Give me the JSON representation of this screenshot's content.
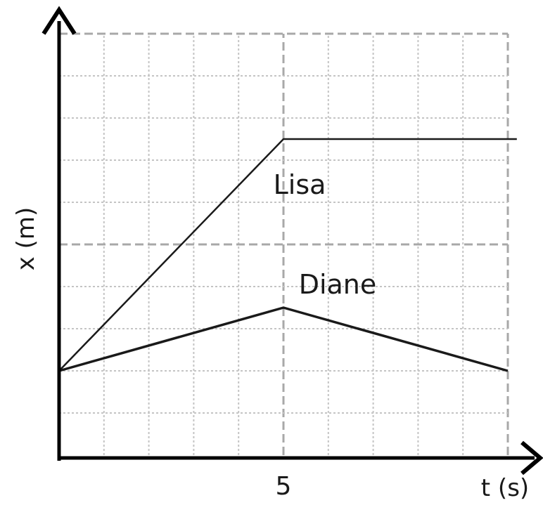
{
  "chart_data": {
    "type": "line",
    "title": "",
    "xlabel": "t (s)",
    "ylabel": "x (m)",
    "xlim": [
      0,
      10
    ],
    "ylim": [
      0,
      10
    ],
    "grid": true,
    "x_ticks": [
      {
        "value": 5,
        "label": "5"
      }
    ],
    "series": [
      {
        "name": "Lisa",
        "x": [
          0,
          5,
          10.2
        ],
        "y": [
          2,
          7.5,
          7.5
        ]
      },
      {
        "name": "Diane",
        "x": [
          0,
          5,
          10
        ],
        "y": [
          2,
          3.5,
          2
        ]
      }
    ]
  }
}
